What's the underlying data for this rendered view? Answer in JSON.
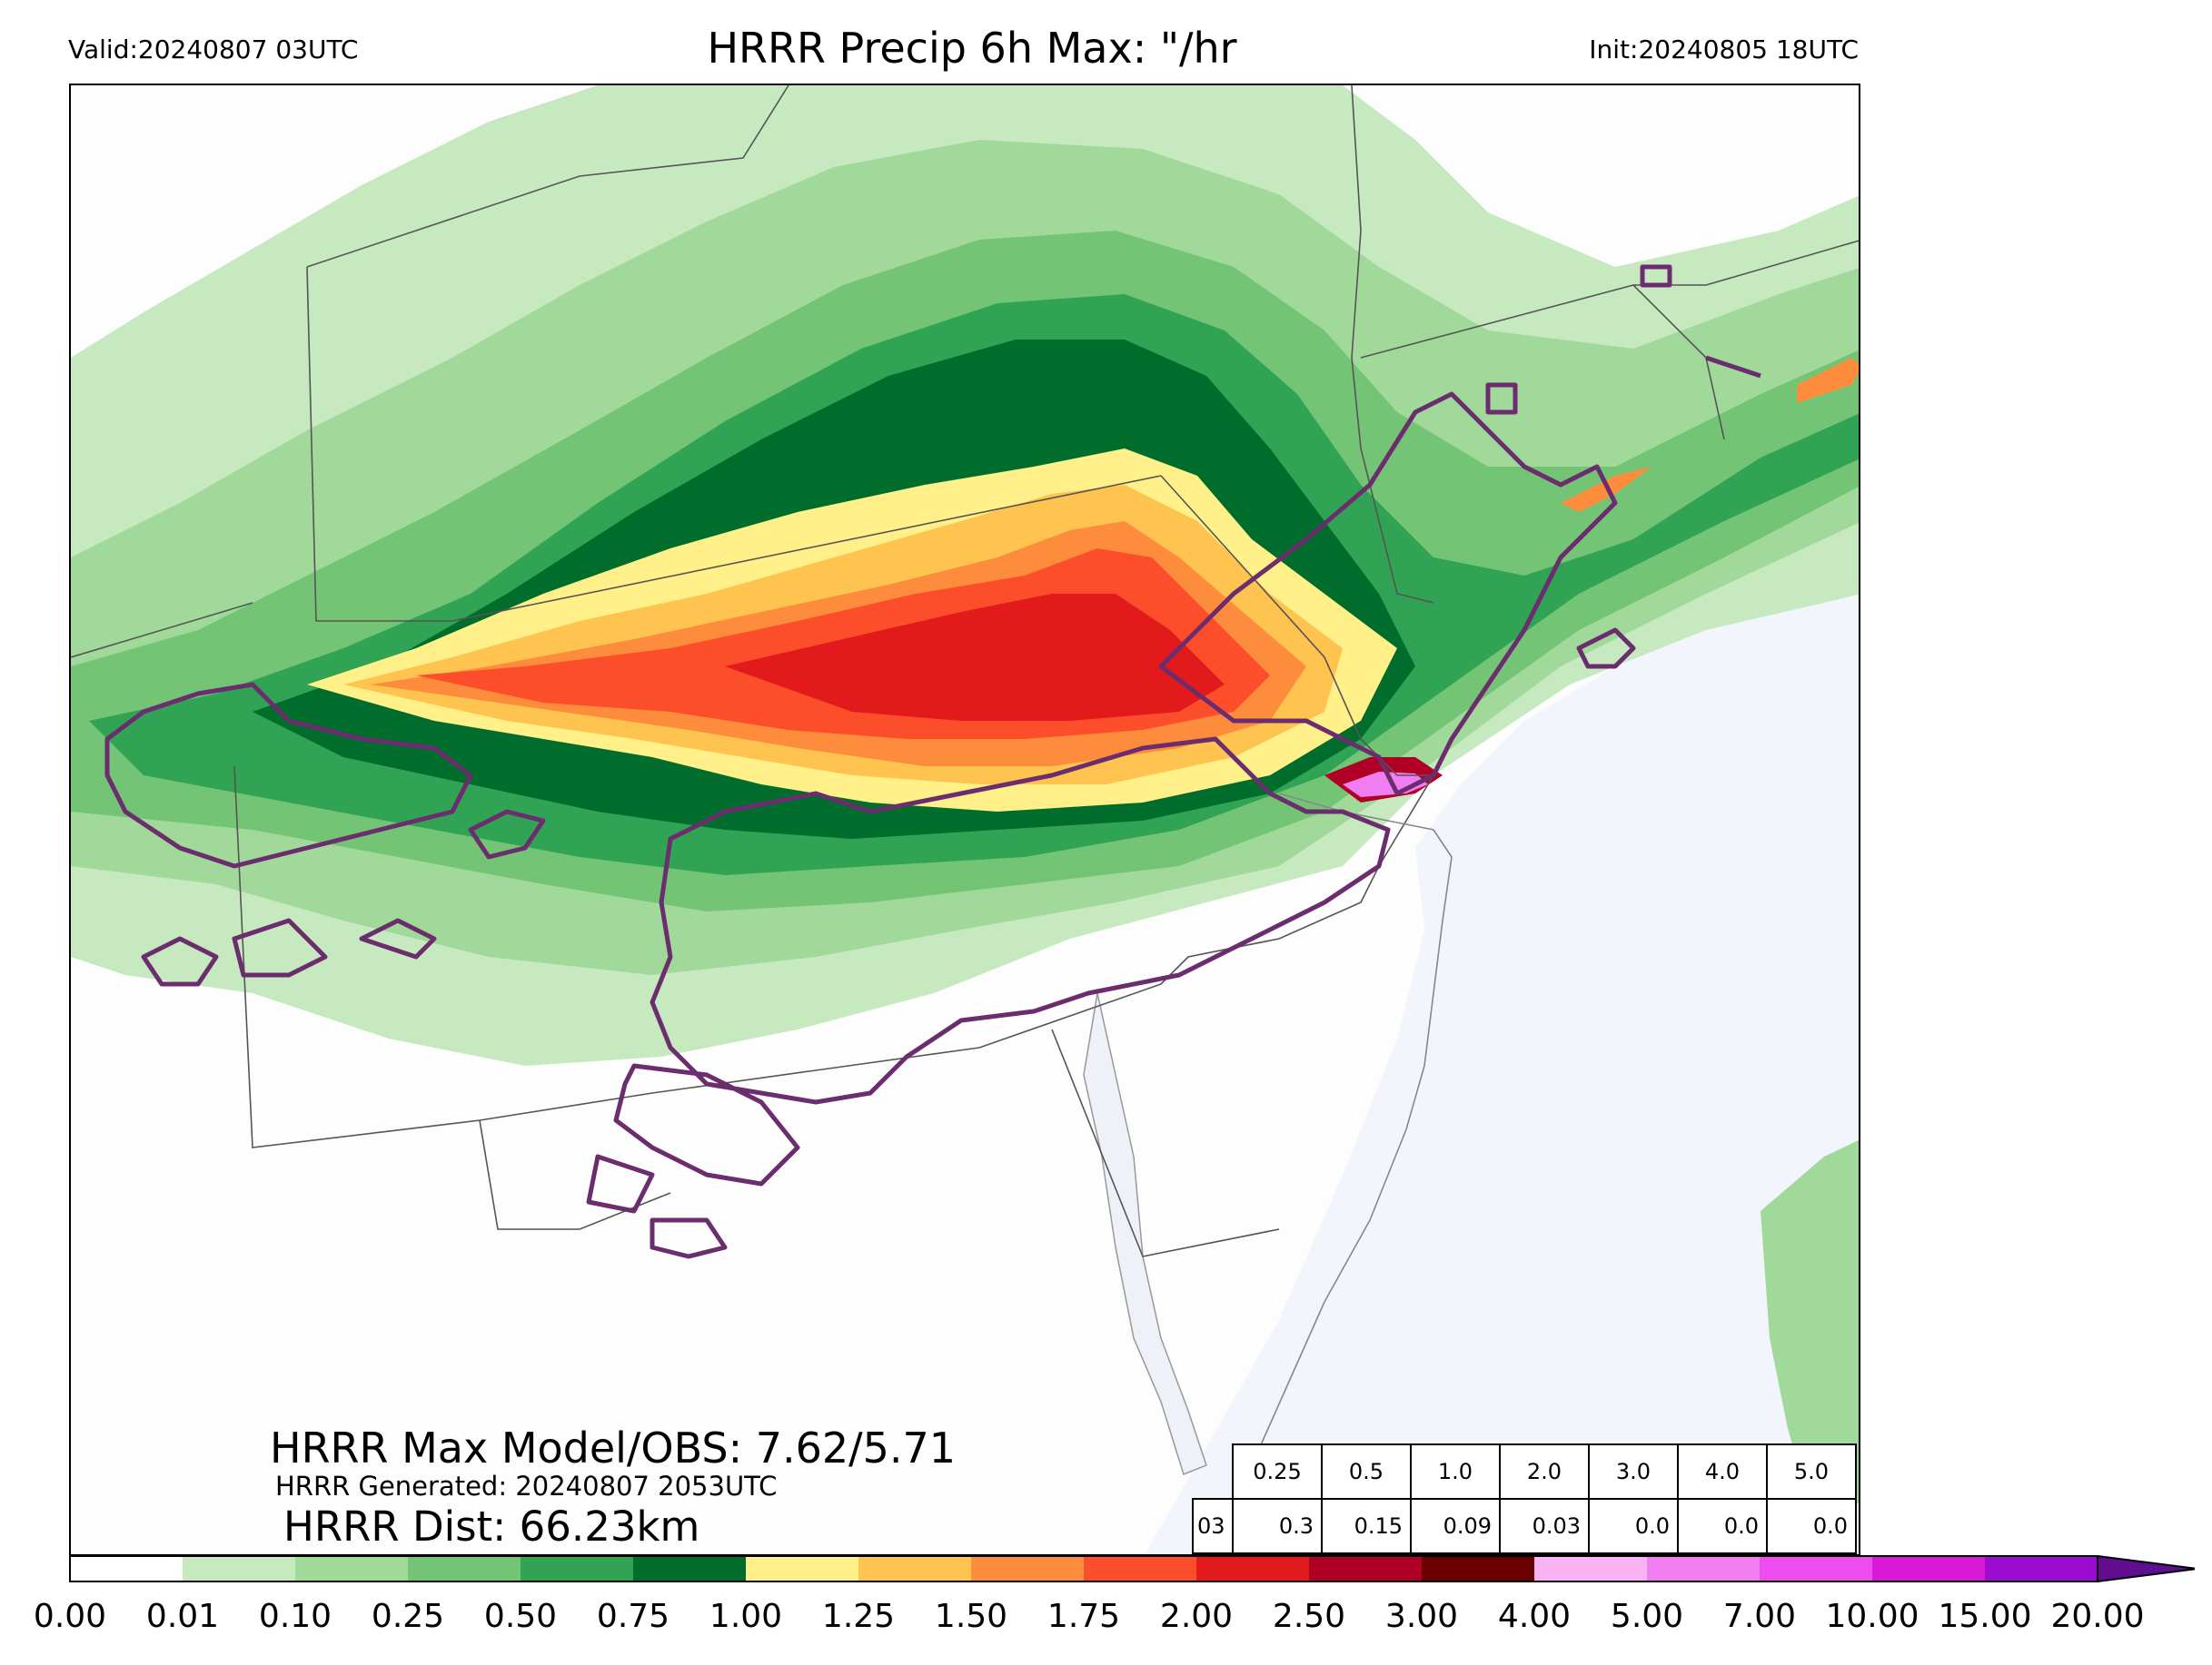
{
  "header": {
    "valid": "Valid:20240807 03UTC",
    "title": "HRRR Precip 6h Max: \"/hr",
    "init": "Init:20240805 18UTC"
  },
  "stats": {
    "max_line": "HRRR Max Model/OBS: 7.62/5.71",
    "generated_line": "HRRR Generated: 20240807 2053UTC",
    "dist_line": "HRRR Dist: 66.23km"
  },
  "threshold_table": {
    "header_row": [
      "0.25",
      "0.5",
      "1.0",
      "2.0",
      "3.0",
      "4.0",
      "5.0"
    ],
    "row_label": "03",
    "value_row": [
      "0.3",
      "0.15",
      "0.09",
      "0.03",
      "0.0",
      "0.0",
      "0.0"
    ]
  },
  "colorbar": {
    "ticks": [
      "0.00",
      "0.01",
      "0.10",
      "0.25",
      "0.50",
      "0.75",
      "1.00",
      "1.25",
      "1.50",
      "1.75",
      "2.00",
      "2.50",
      "3.00",
      "4.00",
      "5.00",
      "7.00",
      "10.00",
      "15.00",
      "20.00"
    ],
    "colors": [
      "#ffffff",
      "#c7e9c0",
      "#a1d99b",
      "#74c476",
      "#31a354",
      "#006d2c",
      "#fff08a",
      "#fec44f",
      "#fd8d3c",
      "#fc4e2a",
      "#e31a1c",
      "#b10026",
      "#6a0000",
      "#f7b3f2",
      "#f07ef0",
      "#ee4cee",
      "#d81ad8",
      "#9a0cd0"
    ],
    "extend_color": "#5e0e8e"
  },
  "map_colors": {
    "water": "#f2f5fb",
    "obs_contour": "#6b2d6e",
    "borders": "#555555"
  }
}
